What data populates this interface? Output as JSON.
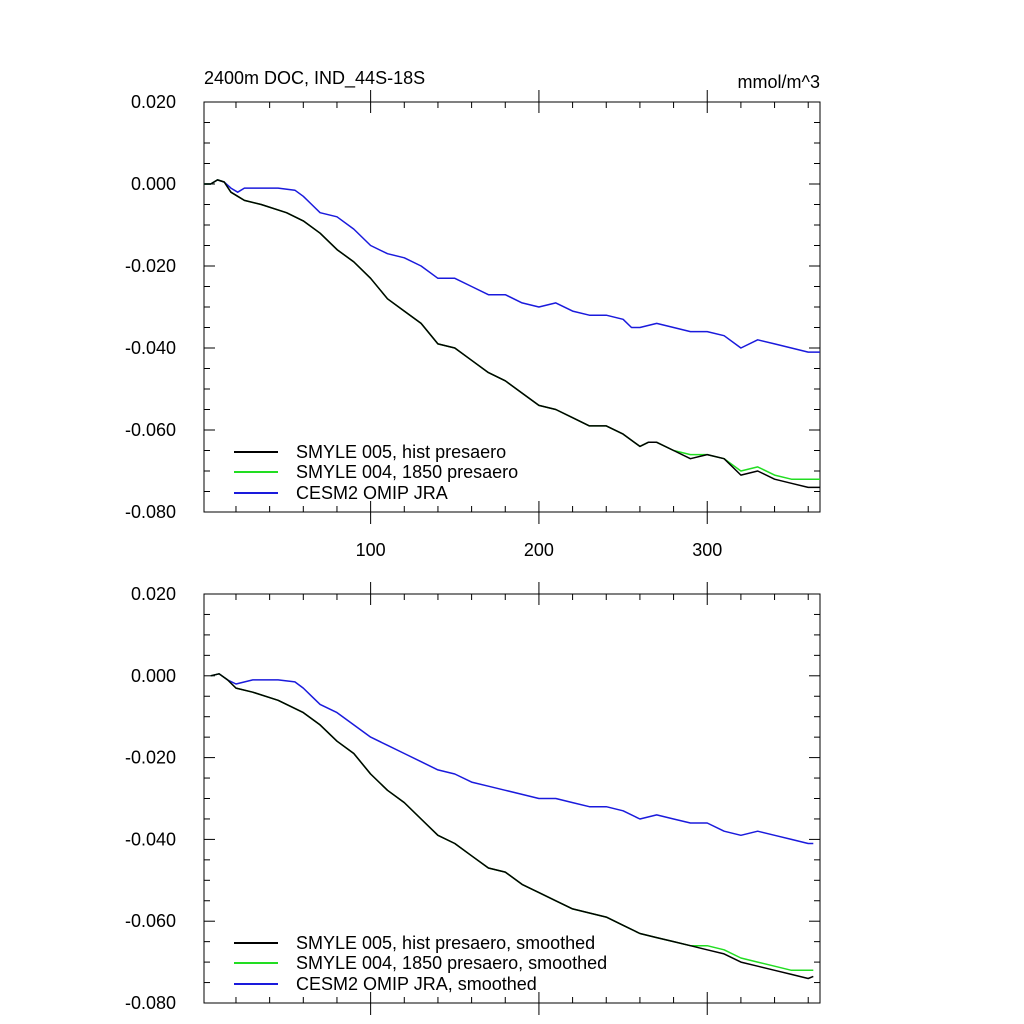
{
  "header": {
    "title": "2400m DOC, IND_44S-18S",
    "units": "mmol/m^3"
  },
  "colors": {
    "hist": "#000000",
    "p1850": "#22dd22",
    "omip": "#1a1adc"
  },
  "chart_data": [
    {
      "type": "line",
      "xlim": [
        1,
        367
      ],
      "ylim": [
        -0.08,
        0.02
      ],
      "xticks": [
        100,
        200,
        300
      ],
      "yticks": [
        0.02,
        0.0,
        -0.02,
        -0.04,
        -0.06,
        -0.08
      ],
      "ytick_labels": [
        "0.020",
        "0.000",
        "-0.020",
        "-0.040",
        "-0.060",
        "-0.080"
      ],
      "grid": false,
      "legend": "bottom-left",
      "series": [
        {
          "key": "hist",
          "name": "SMYLE 005, hist presaero",
          "x": [
            1,
            5,
            9,
            13,
            17,
            21,
            25,
            35,
            50,
            60,
            70,
            80,
            90,
            100,
            110,
            120,
            130,
            140,
            150,
            160,
            170,
            180,
            190,
            200,
            210,
            220,
            230,
            240,
            250,
            260,
            265,
            270,
            280,
            290,
            300,
            310,
            320,
            330,
            340,
            350,
            360,
            367
          ],
          "y": [
            0.0,
            0.0,
            0.001,
            0.0005,
            -0.002,
            -0.003,
            -0.004,
            -0.005,
            -0.007,
            -0.009,
            -0.012,
            -0.016,
            -0.019,
            -0.023,
            -0.028,
            -0.031,
            -0.034,
            -0.039,
            -0.04,
            -0.043,
            -0.046,
            -0.048,
            -0.051,
            -0.054,
            -0.055,
            -0.057,
            -0.059,
            -0.059,
            -0.061,
            -0.064,
            -0.063,
            -0.063,
            -0.065,
            -0.067,
            -0.066,
            -0.067,
            -0.071,
            -0.07,
            -0.072,
            -0.073,
            -0.074,
            -0.074
          ]
        },
        {
          "key": "p1850",
          "name": "SMYLE 004, 1850 presaero",
          "x": [
            1,
            5,
            9,
            13,
            17,
            21,
            25,
            35,
            50,
            60,
            70,
            80,
            90,
            100,
            110,
            120,
            130,
            140,
            150,
            160,
            170,
            180,
            190,
            200,
            210,
            220,
            230,
            240,
            250,
            260,
            265,
            270,
            280,
            290,
            300,
            310,
            320,
            330,
            340,
            350,
            360,
            367
          ],
          "y": [
            0.0,
            0.0,
            0.001,
            0.0005,
            -0.002,
            -0.003,
            -0.004,
            -0.005,
            -0.007,
            -0.009,
            -0.012,
            -0.016,
            -0.019,
            -0.023,
            -0.028,
            -0.031,
            -0.034,
            -0.039,
            -0.04,
            -0.043,
            -0.046,
            -0.048,
            -0.051,
            -0.054,
            -0.055,
            -0.057,
            -0.059,
            -0.059,
            -0.061,
            -0.064,
            -0.063,
            -0.063,
            -0.065,
            -0.066,
            -0.066,
            -0.067,
            -0.07,
            -0.069,
            -0.071,
            -0.072,
            -0.072,
            -0.072
          ]
        },
        {
          "key": "omip",
          "name": "CESM2 OMIP JRA",
          "x": [
            1,
            5,
            9,
            13,
            17,
            21,
            25,
            35,
            45,
            55,
            60,
            65,
            70,
            80,
            90,
            100,
            110,
            120,
            130,
            140,
            150,
            160,
            170,
            180,
            190,
            200,
            210,
            220,
            230,
            240,
            250,
            255,
            260,
            270,
            280,
            290,
            300,
            310,
            320,
            330,
            340,
            350,
            360,
            367
          ],
          "y": [
            0.0,
            0.0,
            0.001,
            0.0005,
            -0.001,
            -0.002,
            -0.001,
            -0.001,
            -0.001,
            -0.0015,
            -0.003,
            -0.005,
            -0.007,
            -0.008,
            -0.011,
            -0.015,
            -0.017,
            -0.018,
            -0.02,
            -0.023,
            -0.023,
            -0.025,
            -0.027,
            -0.027,
            -0.029,
            -0.03,
            -0.029,
            -0.031,
            -0.032,
            -0.032,
            -0.033,
            -0.035,
            -0.035,
            -0.034,
            -0.035,
            -0.036,
            -0.036,
            -0.037,
            -0.04,
            -0.038,
            -0.039,
            -0.04,
            -0.041,
            -0.041
          ]
        }
      ]
    },
    {
      "type": "line",
      "xlim": [
        1,
        367
      ],
      "ylim": [
        -0.08,
        0.02
      ],
      "xticks": [
        100,
        200,
        300
      ],
      "yticks": [
        0.02,
        0.0,
        -0.02,
        -0.04,
        -0.06,
        -0.08
      ],
      "ytick_labels": [
        "0.020",
        "0.000",
        "-0.020",
        "-0.040",
        "-0.060",
        "-0.080"
      ],
      "grid": false,
      "legend": "bottom-left",
      "series": [
        {
          "key": "hist",
          "name": "SMYLE 005, hist presaero, smoothed",
          "x": [
            5,
            10,
            15,
            20,
            30,
            45,
            60,
            70,
            80,
            90,
            100,
            110,
            120,
            130,
            140,
            150,
            160,
            170,
            180,
            190,
            200,
            210,
            220,
            230,
            240,
            250,
            260,
            270,
            280,
            290,
            300,
            310,
            320,
            330,
            340,
            350,
            360,
            363
          ],
          "y": [
            0.0,
            0.0005,
            -0.001,
            -0.003,
            -0.004,
            -0.006,
            -0.009,
            -0.012,
            -0.016,
            -0.019,
            -0.024,
            -0.028,
            -0.031,
            -0.035,
            -0.039,
            -0.041,
            -0.044,
            -0.047,
            -0.048,
            -0.051,
            -0.053,
            -0.055,
            -0.057,
            -0.058,
            -0.059,
            -0.061,
            -0.063,
            -0.064,
            -0.065,
            -0.066,
            -0.067,
            -0.068,
            -0.07,
            -0.071,
            -0.072,
            -0.073,
            -0.074,
            -0.0735
          ]
        },
        {
          "key": "p1850",
          "name": "SMYLE 004, 1850 presaero, smoothed",
          "x": [
            5,
            10,
            15,
            20,
            30,
            45,
            60,
            70,
            80,
            90,
            100,
            110,
            120,
            130,
            140,
            150,
            160,
            170,
            180,
            190,
            200,
            210,
            220,
            230,
            240,
            250,
            260,
            270,
            280,
            290,
            300,
            310,
            320,
            330,
            340,
            350,
            360,
            363
          ],
          "y": [
            0.0,
            0.0005,
            -0.001,
            -0.003,
            -0.004,
            -0.006,
            -0.009,
            -0.012,
            -0.016,
            -0.019,
            -0.024,
            -0.028,
            -0.031,
            -0.035,
            -0.039,
            -0.041,
            -0.044,
            -0.047,
            -0.048,
            -0.051,
            -0.053,
            -0.055,
            -0.057,
            -0.058,
            -0.059,
            -0.061,
            -0.063,
            -0.064,
            -0.065,
            -0.066,
            -0.066,
            -0.067,
            -0.069,
            -0.07,
            -0.071,
            -0.072,
            -0.072,
            -0.072
          ]
        },
        {
          "key": "omip",
          "name": "CESM2 OMIP JRA, smoothed",
          "x": [
            5,
            10,
            15,
            20,
            30,
            45,
            55,
            60,
            65,
            70,
            80,
            90,
            100,
            110,
            120,
            130,
            140,
            150,
            160,
            170,
            180,
            190,
            200,
            210,
            220,
            230,
            240,
            250,
            260,
            270,
            280,
            290,
            300,
            310,
            320,
            330,
            340,
            350,
            360,
            363
          ],
          "y": [
            0.0,
            0.0005,
            -0.001,
            -0.002,
            -0.001,
            -0.001,
            -0.0015,
            -0.003,
            -0.005,
            -0.007,
            -0.009,
            -0.012,
            -0.015,
            -0.017,
            -0.019,
            -0.021,
            -0.023,
            -0.024,
            -0.026,
            -0.027,
            -0.028,
            -0.029,
            -0.03,
            -0.03,
            -0.031,
            -0.032,
            -0.032,
            -0.033,
            -0.035,
            -0.034,
            -0.035,
            -0.036,
            -0.036,
            -0.038,
            -0.039,
            -0.038,
            -0.039,
            -0.04,
            -0.041,
            -0.041
          ]
        }
      ]
    }
  ]
}
